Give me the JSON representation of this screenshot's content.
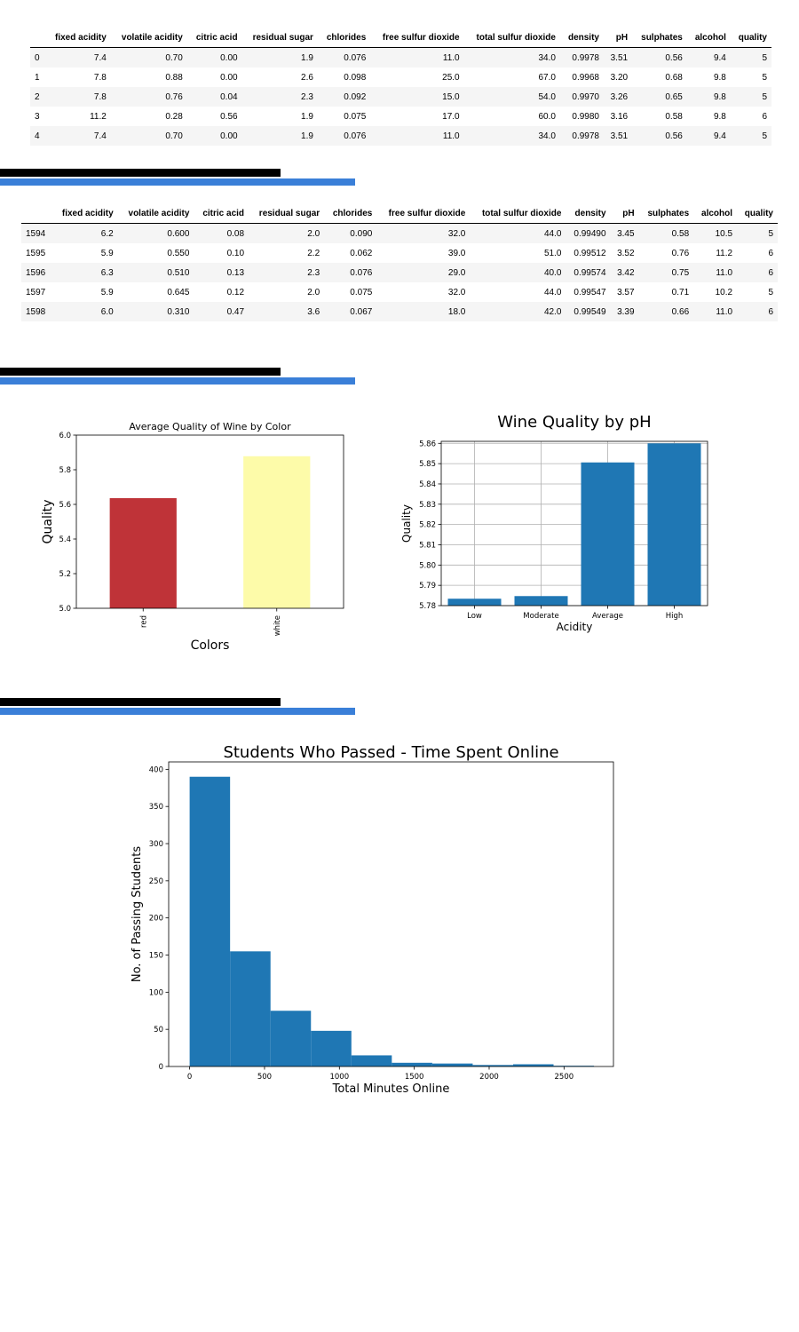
{
  "table_head": {
    "columns": [
      "fixed acidity",
      "volatile acidity",
      "citric acid",
      "residual sugar",
      "chlorides",
      "free sulfur dioxide",
      "total sulfur dioxide",
      "density",
      "pH",
      "sulphates",
      "alcohol",
      "quality"
    ],
    "rows": [
      [
        "0",
        "7.4",
        "0.70",
        "0.00",
        "1.9",
        "0.076",
        "11.0",
        "34.0",
        "0.9978",
        "3.51",
        "0.56",
        "9.4",
        "5"
      ],
      [
        "1",
        "7.8",
        "0.88",
        "0.00",
        "2.6",
        "0.098",
        "25.0",
        "67.0",
        "0.9968",
        "3.20",
        "0.68",
        "9.8",
        "5"
      ],
      [
        "2",
        "7.8",
        "0.76",
        "0.04",
        "2.3",
        "0.092",
        "15.0",
        "54.0",
        "0.9970",
        "3.26",
        "0.65",
        "9.8",
        "5"
      ],
      [
        "3",
        "11.2",
        "0.28",
        "0.56",
        "1.9",
        "0.075",
        "17.0",
        "60.0",
        "0.9980",
        "3.16",
        "0.58",
        "9.8",
        "6"
      ],
      [
        "4",
        "7.4",
        "0.70",
        "0.00",
        "1.9",
        "0.076",
        "11.0",
        "34.0",
        "0.9978",
        "3.51",
        "0.56",
        "9.4",
        "5"
      ]
    ]
  },
  "table_tail": {
    "columns": [
      "fixed acidity",
      "volatile acidity",
      "citric acid",
      "residual sugar",
      "chlorides",
      "free sulfur dioxide",
      "total sulfur dioxide",
      "density",
      "pH",
      "sulphates",
      "alcohol",
      "quality"
    ],
    "rows": [
      [
        "1594",
        "6.2",
        "0.600",
        "0.08",
        "2.0",
        "0.090",
        "32.0",
        "44.0",
        "0.99490",
        "3.45",
        "0.58",
        "10.5",
        "5"
      ],
      [
        "1595",
        "5.9",
        "0.550",
        "0.10",
        "2.2",
        "0.062",
        "39.0",
        "51.0",
        "0.99512",
        "3.52",
        "0.76",
        "11.2",
        "6"
      ],
      [
        "1596",
        "6.3",
        "0.510",
        "0.13",
        "2.3",
        "0.076",
        "29.0",
        "40.0",
        "0.99574",
        "3.42",
        "0.75",
        "11.0",
        "6"
      ],
      [
        "1597",
        "5.9",
        "0.645",
        "0.12",
        "2.0",
        "0.075",
        "32.0",
        "44.0",
        "0.99547",
        "3.57",
        "0.71",
        "10.2",
        "5"
      ],
      [
        "1598",
        "6.0",
        "0.310",
        "0.47",
        "3.6",
        "0.067",
        "18.0",
        "42.0",
        "0.99549",
        "3.39",
        "0.66",
        "11.0",
        "6"
      ]
    ]
  },
  "chart_data": [
    {
      "type": "bar",
      "title": "Average Quality of Wine by Color",
      "xlabel": "Colors",
      "ylabel": "Quality",
      "categories": [
        "red",
        "white"
      ],
      "values": [
        5.636,
        5.878
      ],
      "colors": [
        "#bf3338",
        "#fdfba9"
      ],
      "ylim": [
        5.0,
        6.0
      ],
      "yticks": [
        "5.0",
        "5.2",
        "5.4",
        "5.6",
        "5.8",
        "6.0"
      ],
      "tick_rotation": "vertical",
      "grid": false
    },
    {
      "type": "bar",
      "title": "Wine Quality by pH",
      "xlabel": "Acidity",
      "ylabel": "Quality",
      "categories": [
        "Low",
        "Moderate",
        "Average",
        "High"
      ],
      "values": [
        5.7834,
        5.7847,
        5.8506,
        5.86
      ],
      "colors": [
        "#1f77b4"
      ],
      "ylim": [
        5.78,
        5.861
      ],
      "yticks": [
        "5.78",
        "5.79",
        "5.80",
        "5.81",
        "5.82",
        "5.83",
        "5.84",
        "5.85",
        "5.86"
      ],
      "grid": true
    },
    {
      "type": "histogram",
      "title": "Students Who Passed - Time Spent Online",
      "xlabel": "Total Minutes Online",
      "ylabel": "No. of Passing Students",
      "bin_edges": [
        0,
        270,
        540,
        810,
        1080,
        1350,
        1620,
        1890,
        2160,
        2430,
        2700
      ],
      "counts": [
        390,
        155,
        75,
        48,
        15,
        5,
        4,
        2,
        3,
        1
      ],
      "colors": [
        "#1f77b4"
      ],
      "xlim": [
        -140,
        2830
      ],
      "ylim": [
        0,
        410
      ],
      "xticks": [
        "0",
        "500",
        "1000",
        "1500",
        "2000",
        "2500"
      ],
      "yticks": [
        "0",
        "50",
        "100",
        "150",
        "200",
        "250",
        "300",
        "350",
        "400"
      ],
      "grid": false
    }
  ]
}
